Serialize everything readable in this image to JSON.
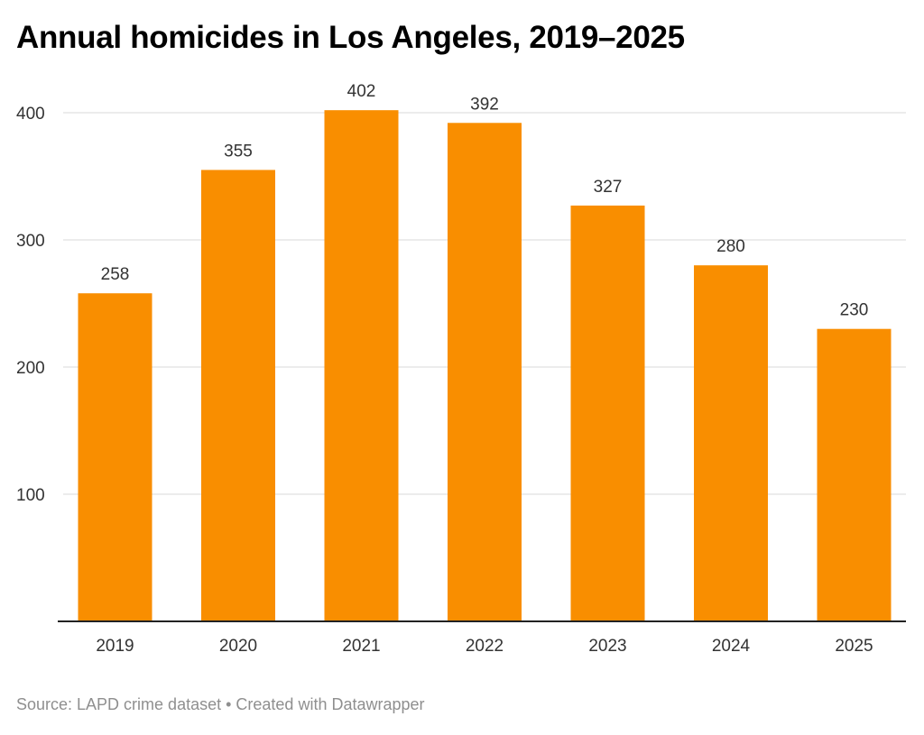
{
  "chart_data": {
    "type": "bar",
    "title": "Annual homicides in Los Angeles, 2019–2025",
    "categories": [
      "2019",
      "2020",
      "2021",
      "2022",
      "2023",
      "2024",
      "2025"
    ],
    "values": [
      258,
      355,
      402,
      392,
      327,
      280,
      230
    ],
    "yticks": [
      100,
      200,
      300,
      400
    ],
    "ylim": [
      0,
      400
    ],
    "grid": true,
    "bar_color": "#F98E00",
    "xlabel": "",
    "ylabel": ""
  },
  "footer": "Source: LAPD crime dataset • Created with Datawrapper"
}
